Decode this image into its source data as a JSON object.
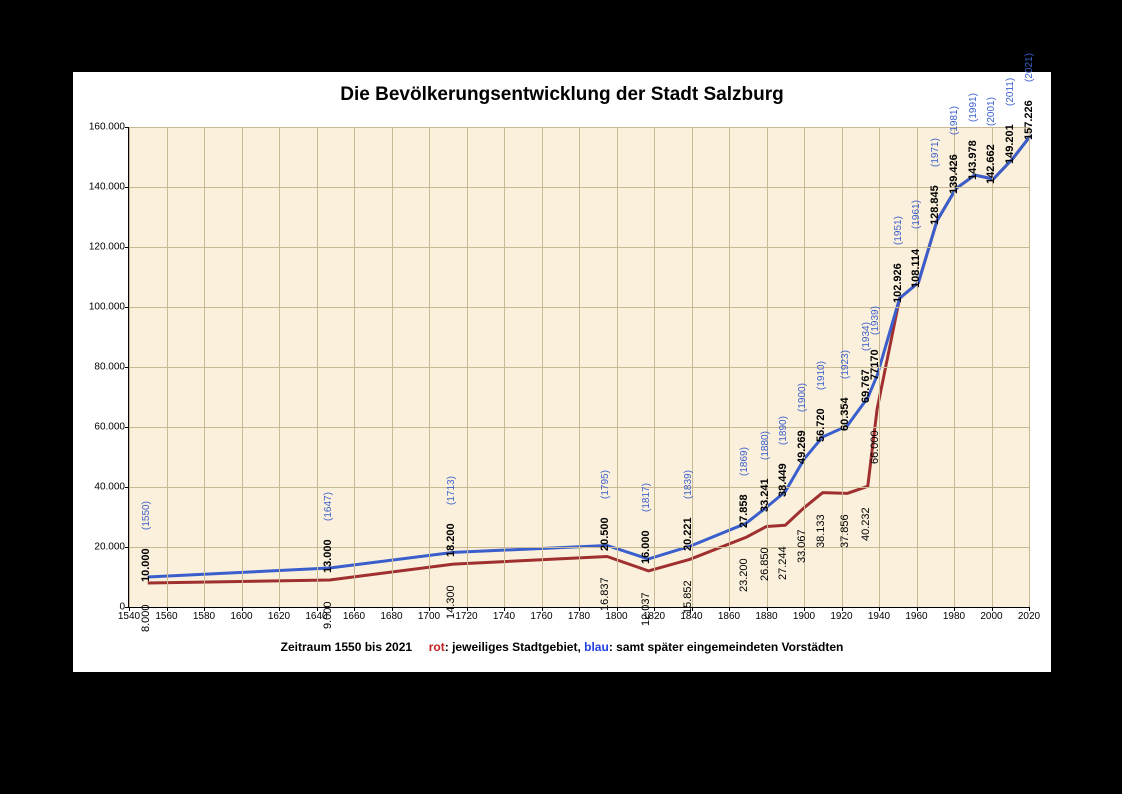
{
  "title": "Die Bevölkerungsentwicklung der Stadt Salzburg",
  "caption": {
    "period": "Zeitraum 1550 bis 2021",
    "red_label": "rot",
    "red_text": ": jeweiliges Stadtgebiet, ",
    "blue_label": "blau",
    "blue_text": ": samt später eingemeindeten Vorstädten"
  },
  "chart": {
    "type": "line",
    "background_color": "#faf0dc",
    "grid_color": "#c8b893",
    "xlim": [
      1540,
      2020
    ],
    "ylim": [
      0,
      160000
    ],
    "xtick_step": 20,
    "ytick_step": 20000,
    "x_ticks": [
      1540,
      1560,
      1580,
      1600,
      1620,
      1640,
      1660,
      1680,
      1700,
      1720,
      1740,
      1760,
      1780,
      1800,
      1820,
      1840,
      1860,
      1880,
      1900,
      1920,
      1940,
      1960,
      1980,
      2000,
      2020
    ],
    "y_ticks": [
      0,
      20000,
      40000,
      60000,
      80000,
      100000,
      120000,
      140000,
      160000
    ],
    "y_tick_labels": [
      "0",
      "20.000",
      "40.000",
      "60.000",
      "80.000",
      "100.000",
      "120.000",
      "140.000",
      "160.000"
    ],
    "series": {
      "blue": {
        "color": "#3a5fcd",
        "line_width": 3,
        "points": [
          {
            "year": 1550,
            "value": 10000,
            "label": "10.000",
            "year_label": "(1550)",
            "show_label": true
          },
          {
            "year": 1647,
            "value": 13000,
            "label": "13.000",
            "year_label": "(1647)",
            "show_label": true
          },
          {
            "year": 1713,
            "value": 18200,
            "label": "18.200",
            "year_label": "(1713)",
            "show_label": true
          },
          {
            "year": 1795,
            "value": 20500,
            "label": "20.500",
            "year_label": "(1795)",
            "show_label": true
          },
          {
            "year": 1817,
            "value": 16000,
            "label": "16.000",
            "year_label": "(1817)",
            "show_label": true
          },
          {
            "year": 1839,
            "value": 20221,
            "label": "20.221",
            "year_label": "(1839)",
            "show_label": true
          },
          {
            "year": 1869,
            "value": 27858,
            "label": "27.858",
            "year_label": "(1869)",
            "show_label": true
          },
          {
            "year": 1880,
            "value": 33241,
            "label": "33.241",
            "year_label": "(1880)",
            "show_label": true
          },
          {
            "year": 1890,
            "value": 38449,
            "label": "38.449",
            "year_label": "(1890)",
            "show_label": true
          },
          {
            "year": 1900,
            "value": 49269,
            "label": "49.269",
            "year_label": "(1900)",
            "show_label": true
          },
          {
            "year": 1910,
            "value": 56720,
            "label": "56.720",
            "year_label": "(1910)",
            "show_label": true
          },
          {
            "year": 1923,
            "value": 60354,
            "label": "60.354",
            "year_label": "(1923)",
            "show_label": true
          },
          {
            "year": 1934,
            "value": 69767,
            "label": "69.767",
            "year_label": "(1934)",
            "show_label": true
          },
          {
            "year": 1939,
            "value": 77170,
            "label": "77170",
            "year_label": "(1939)",
            "show_label": true
          },
          {
            "year": 1951,
            "value": 102926,
            "label": "102.926",
            "year_label": "(1951)",
            "show_label": true
          },
          {
            "year": 1961,
            "value": 108114,
            "label": "108.114",
            "year_label": "(1961)",
            "show_label": true
          },
          {
            "year": 1971,
            "value": 128845,
            "label": "128.845",
            "year_label": "(1971)",
            "show_label": true
          },
          {
            "year": 1981,
            "value": 139426,
            "label": "139.426",
            "year_label": "(1981)",
            "show_label": true
          },
          {
            "year": 1991,
            "value": 143978,
            "label": "143.978",
            "year_label": "(1991)",
            "show_label": true
          },
          {
            "year": 2001,
            "value": 142662,
            "label": "142.662",
            "year_label": "(2001)",
            "show_label": true
          },
          {
            "year": 2011,
            "value": 149201,
            "label": "149.201",
            "year_label": "(2011)",
            "show_label": true
          },
          {
            "year": 2021,
            "value": 157226,
            "label": "157.226",
            "year_label": "(2021)",
            "show_label": true
          }
        ]
      },
      "red": {
        "color": "#a03030",
        "line_width": 3,
        "points": [
          {
            "year": 1550,
            "value": 8000,
            "label": "8.000",
            "show_label": true,
            "below": true
          },
          {
            "year": 1647,
            "value": 9000,
            "label": "9.000",
            "show_label": true,
            "below": true
          },
          {
            "year": 1713,
            "value": 14300,
            "label": "14.300",
            "show_label": true,
            "below": true
          },
          {
            "year": 1795,
            "value": 16837,
            "label": "16.837",
            "show_label": true,
            "below": true
          },
          {
            "year": 1817,
            "value": 12037,
            "label": "12.037",
            "show_label": true,
            "below": true
          },
          {
            "year": 1839,
            "value": 15852,
            "label": "15.852",
            "show_label": true,
            "below": true
          },
          {
            "year": 1869,
            "value": 23200,
            "label": "23.200",
            "show_label": true,
            "below": true
          },
          {
            "year": 1880,
            "value": 26850,
            "label": "26.850",
            "show_label": true,
            "below": true
          },
          {
            "year": 1890,
            "value": 27244,
            "label": "27.244",
            "show_label": true,
            "below": true
          },
          {
            "year": 1900,
            "value": 33067,
            "label": "33.067",
            "show_label": true,
            "below": true
          },
          {
            "year": 1910,
            "value": 38133,
            "label": "38.133",
            "show_label": true,
            "below": true
          },
          {
            "year": 1923,
            "value": 37856,
            "label": "37.856",
            "show_label": true,
            "below": true
          },
          {
            "year": 1934,
            "value": 40232,
            "label": "40.232",
            "show_label": true,
            "below": true
          },
          {
            "year": 1939,
            "value": 66000,
            "label": "66.000",
            "show_label": true,
            "below": true
          },
          {
            "year": 1951,
            "value": 102926,
            "show_label": false
          },
          {
            "year": 1961,
            "value": 108114,
            "show_label": false
          },
          {
            "year": 1971,
            "value": 128845,
            "show_label": false
          },
          {
            "year": 1981,
            "value": 139426,
            "show_label": false
          },
          {
            "year": 1991,
            "value": 143978,
            "show_label": false
          },
          {
            "year": 2001,
            "value": 142662,
            "show_label": false
          },
          {
            "year": 2011,
            "value": 149201,
            "show_label": false
          },
          {
            "year": 2021,
            "value": 157226,
            "show_label": false
          }
        ]
      }
    }
  }
}
